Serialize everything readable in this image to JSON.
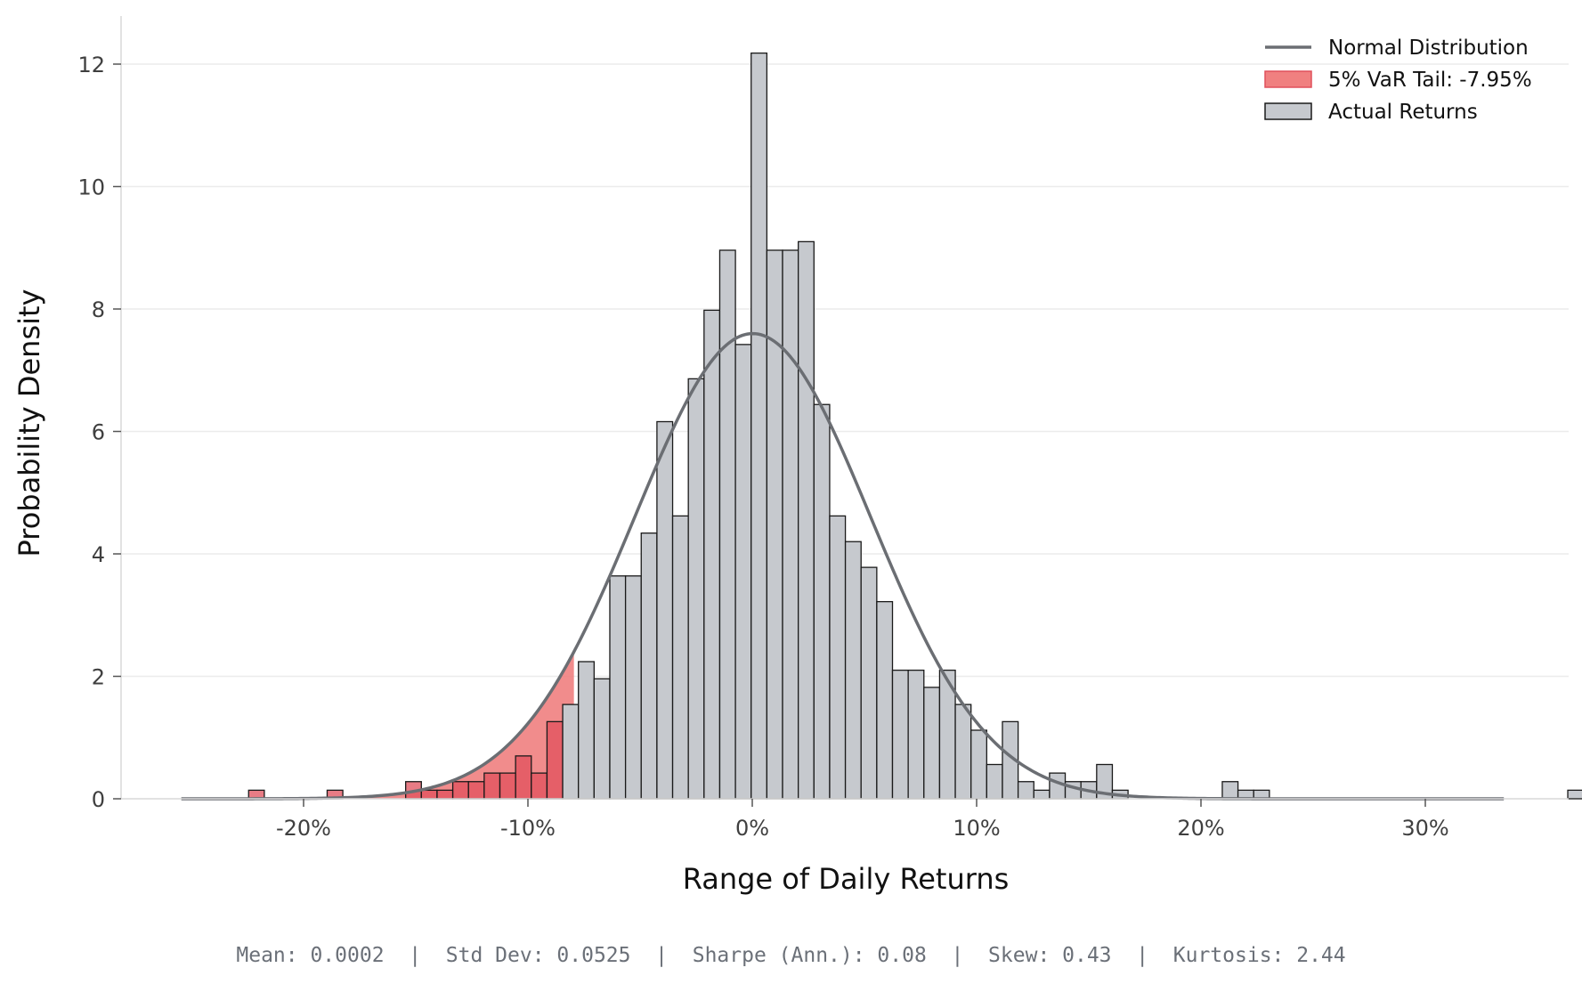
{
  "chart_data": {
    "type": "bar",
    "title": "",
    "xlabel": "Range of Daily Returns",
    "ylabel": "Probability Density",
    "xlim": [
      -0.27,
      0.365
    ],
    "ylim": [
      0,
      12.8
    ],
    "x_ticks": [
      -0.2,
      -0.1,
      0.0,
      0.1,
      0.2,
      0.3
    ],
    "x_tick_labels": [
      "-20%",
      "-10%",
      "0%",
      "10%",
      "20%",
      "30%"
    ],
    "y_ticks": [
      0,
      2,
      4,
      6,
      8,
      10,
      12
    ],
    "y_tick_labels": [
      "0",
      "2",
      "4",
      "6",
      "8",
      "10",
      "12"
    ],
    "grid": "horizontal",
    "legend_position": "top-right",
    "colors": {
      "bars": "#c6c9ce",
      "bar_edge": "#1a1a1a",
      "tail": "#e0505c",
      "tail_fill": "#f08080",
      "normal_line": "#6b6e73",
      "grid": "#ececec",
      "stats": "#6b7078"
    },
    "var_threshold": -0.0795,
    "bin_width": 0.007,
    "histogram": {
      "name": "Actual Returns",
      "bin_start": -0.2245,
      "values": [
        0.14,
        0,
        0,
        0,
        0,
        0.14,
        0,
        0,
        0,
        0,
        0.28,
        0.14,
        0.14,
        0.28,
        0.28,
        0.42,
        0.42,
        0.7,
        0.42,
        1.26,
        1.54,
        2.24,
        1.96,
        3.64,
        3.64,
        4.34,
        6.16,
        4.62,
        6.86,
        7.98,
        8.96,
        7.42,
        12.18,
        8.96,
        8.96,
        9.1,
        6.44,
        4.62,
        4.2,
        3.78,
        3.22,
        2.1,
        2.1,
        1.82,
        2.1,
        1.54,
        1.12,
        0.56,
        1.26,
        0.28,
        0.14,
        0.42,
        0.28,
        0.28,
        0.56,
        0.14,
        0,
        0,
        0,
        0,
        0,
        0,
        0.28,
        0.14,
        0.14,
        0,
        0,
        0,
        0,
        0,
        0,
        0,
        0,
        0,
        0,
        0,
        0,
        0,
        0,
        0,
        0,
        0,
        0,
        0,
        0.14
      ]
    },
    "normal_distribution": {
      "name": "Normal Distribution",
      "mean": 0.0002,
      "std": 0.0525,
      "x_range": [
        -0.2545,
        0.335
      ]
    },
    "legend": [
      {
        "key": "normal",
        "label": "Normal Distribution"
      },
      {
        "key": "tail",
        "label": "5% VaR Tail: -7.95%"
      },
      {
        "key": "bars",
        "label": "Actual Returns"
      }
    ],
    "stats_text": "Mean: 0.0002  |  Std Dev: 0.0525  |  Sharpe (Ann.): 0.08  |  Skew: 0.43  |  Kurtosis: 2.44"
  }
}
